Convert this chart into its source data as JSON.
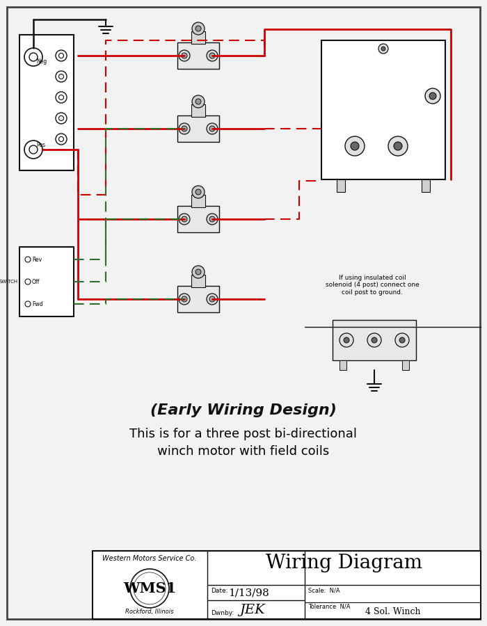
{
  "bg_color": "#f2f2f2",
  "caption_line1": "(Early Wiring Design)",
  "caption_line2": "This is for a three post bi-directional",
  "caption_line3": "winch motor with field coils",
  "tb_company": "Western Motors Service Co.",
  "tb_logo": "WMS1",
  "tb_city": "Rockford, Illinois",
  "tb_date_label": "Date:",
  "tb_date": "1/13/98",
  "tb_scale_label": "Scale:  N/A",
  "tb_tolerance_label": "Tolerance  N/A",
  "tb_dwnby_label": "Dwnby:",
  "tb_dwnby": "JEK",
  "tb_title": "Wiring Diagram",
  "tb_bottom_right": "4 Sol. Winch",
  "wire_red": "#cc0000",
  "wire_black": "#111111",
  "wire_green": "#2d6e2d"
}
